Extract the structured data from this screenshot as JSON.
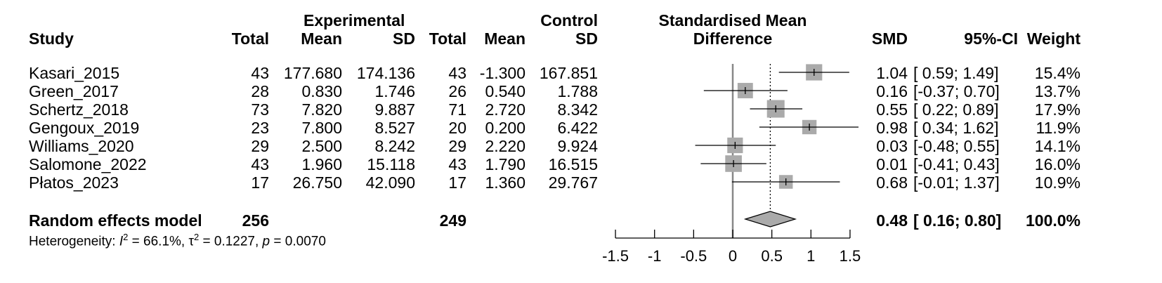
{
  "header": {
    "study": "Study",
    "experimental_group": "Experimental",
    "control_group": "Control",
    "total": "Total",
    "mean": "Mean",
    "sd": "SD",
    "smd_header_line1": "Standardised Mean",
    "smd_header_line2": "Difference",
    "smd": "SMD",
    "ci": "95%-CI",
    "weight": "Weight"
  },
  "chart_data": {
    "type": "forest",
    "xlim": [
      -1.5,
      1.5
    ],
    "x_ticks": [
      -1.5,
      -1,
      -0.5,
      0,
      0.5,
      1,
      1.5
    ],
    "x_tick_labels": [
      "-1.5",
      "-1",
      "-0.5",
      "0",
      "0.5",
      "1",
      "1.5"
    ],
    "null_line": 0,
    "pooled_reference": 0.48,
    "studies": [
      {
        "study": "Kasari_2015",
        "e_total": "43",
        "e_mean": "177.680",
        "e_sd": "174.136",
        "c_total": "43",
        "c_mean": "-1.300",
        "c_sd": "167.851",
        "smd": 1.04,
        "lower": 0.59,
        "upper": 1.49,
        "smd_text": "1.04",
        "ci_text": "[ 0.59; 1.49]",
        "weight": 15.4,
        "weight_text": "15.4%"
      },
      {
        "study": "Green_2017",
        "e_total": "28",
        "e_mean": "0.830",
        "e_sd": "1.746",
        "c_total": "26",
        "c_mean": "0.540",
        "c_sd": "1.788",
        "smd": 0.16,
        "lower": -0.37,
        "upper": 0.7,
        "smd_text": "0.16",
        "ci_text": "[-0.37; 0.70]",
        "weight": 13.7,
        "weight_text": "13.7%"
      },
      {
        "study": "Schertz_2018",
        "e_total": "73",
        "e_mean": "7.820",
        "e_sd": "9.887",
        "c_total": "71",
        "c_mean": "2.720",
        "c_sd": "8.342",
        "smd": 0.55,
        "lower": 0.22,
        "upper": 0.89,
        "smd_text": "0.55",
        "ci_text": "[ 0.22; 0.89]",
        "weight": 17.9,
        "weight_text": "17.9%"
      },
      {
        "study": "Gengoux_2019",
        "e_total": "23",
        "e_mean": "7.800",
        "e_sd": "8.527",
        "c_total": "20",
        "c_mean": "0.200",
        "c_sd": "6.422",
        "smd": 0.98,
        "lower": 0.34,
        "upper": 1.62,
        "smd_text": "0.98",
        "ci_text": "[ 0.34; 1.62]",
        "weight": 11.9,
        "weight_text": "11.9%"
      },
      {
        "study": "Williams_2020",
        "e_total": "29",
        "e_mean": "2.500",
        "e_sd": "8.242",
        "c_total": "29",
        "c_mean": "2.220",
        "c_sd": "9.924",
        "smd": 0.03,
        "lower": -0.48,
        "upper": 0.55,
        "smd_text": "0.03",
        "ci_text": "[-0.48; 0.55]",
        "weight": 14.1,
        "weight_text": "14.1%"
      },
      {
        "study": "Salomone_2022",
        "e_total": "43",
        "e_mean": "1.960",
        "e_sd": "15.118",
        "c_total": "43",
        "c_mean": "1.790",
        "c_sd": "16.515",
        "smd": 0.01,
        "lower": -0.41,
        "upper": 0.43,
        "smd_text": "0.01",
        "ci_text": "[-0.41; 0.43]",
        "weight": 16.0,
        "weight_text": "16.0%"
      },
      {
        "study": "Płatos_2023",
        "e_total": "17",
        "e_mean": "26.750",
        "e_sd": "42.090",
        "c_total": "17",
        "c_mean": "1.360",
        "c_sd": "29.767",
        "smd": 0.68,
        "lower": -0.01,
        "upper": 1.37,
        "smd_text": "0.68",
        "ci_text": "[-0.01; 1.37]",
        "weight": 10.9,
        "weight_text": "10.9%"
      }
    ],
    "pooled": {
      "label": "Random effects model",
      "e_total": "256",
      "c_total": "249",
      "smd": 0.48,
      "lower": 0.16,
      "upper": 0.8,
      "smd_text": "0.48",
      "ci_text": "[ 0.16; 0.80]",
      "weight_text": "100.0%"
    },
    "heterogeneity": {
      "prefix": "Heterogeneity: ",
      "i2_symbol": "I",
      "i2_sup": "2",
      "i2_value": " = 66.1%, ",
      "tau_symbol": "τ",
      "tau_sup": "2",
      "tau_value": " = 0.1227, ",
      "p_symbol": "p",
      "p_value": " = 0.0070"
    },
    "colors": {
      "square": "#aaaaaa",
      "diamond": "#aaaaaa",
      "null_line": "#888888",
      "line": "#000000"
    }
  }
}
